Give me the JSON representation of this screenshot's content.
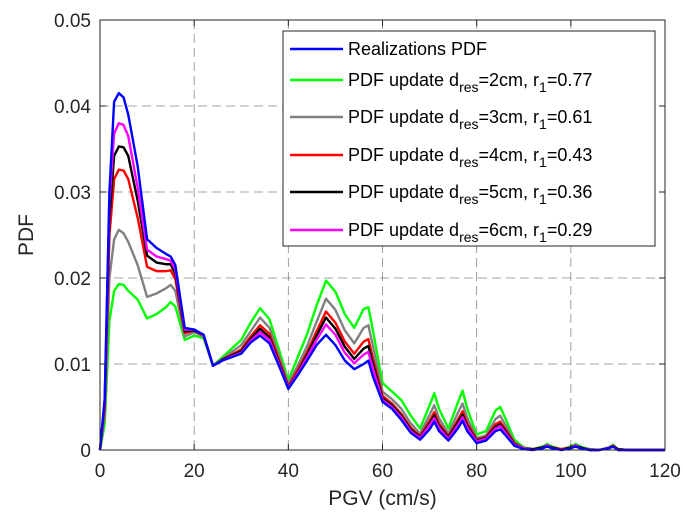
{
  "chart_data": {
    "type": "line",
    "xlabel": "PGV (cm/s)",
    "ylabel": "PDF",
    "xlim": [
      0,
      120
    ],
    "ylim": [
      0,
      0.05
    ],
    "xticks": [
      0,
      20,
      40,
      60,
      80,
      100,
      120
    ],
    "yticks": [
      0,
      0.01,
      0.02,
      0.03,
      0.04,
      0.05
    ],
    "xtick_labels": [
      "0",
      "20",
      "40",
      "60",
      "80",
      "100",
      "120"
    ],
    "ytick_labels": [
      "0",
      "0.01",
      "0.02",
      "0.03",
      "0.04",
      "0.05"
    ],
    "grid": true,
    "legend_position": "top-right",
    "x": [
      0,
      1,
      2,
      3,
      4,
      5,
      6,
      8,
      10,
      12,
      14,
      15,
      16,
      18,
      20,
      22,
      24,
      26,
      28,
      30,
      32,
      34,
      36,
      38,
      40,
      42,
      44,
      46,
      48,
      50,
      52,
      54,
      56,
      57,
      58,
      60,
      62,
      64,
      66,
      68,
      70,
      71,
      72,
      74,
      76,
      77,
      78,
      80,
      82,
      84,
      85,
      86,
      88,
      90,
      92,
      94,
      95,
      96,
      98,
      100,
      101,
      102,
      104,
      106,
      108,
      109,
      110,
      112,
      116,
      120
    ],
    "series": [
      {
        "name": "Realizations PDF",
        "legend_main": "Realizations PDF",
        "legend_sub": "",
        "legend_tail": "",
        "legend_tail_sub": "",
        "legend_value": "",
        "color": "#0000FF",
        "values": [
          0,
          0.006,
          0.03,
          0.0405,
          0.0415,
          0.041,
          0.039,
          0.033,
          0.0245,
          0.0235,
          0.0228,
          0.0225,
          0.0215,
          0.0142,
          0.014,
          0.0134,
          0.0098,
          0.0104,
          0.0108,
          0.0112,
          0.0125,
          0.0133,
          0.0124,
          0.0098,
          0.0071,
          0.0087,
          0.0104,
          0.0122,
          0.0134,
          0.0122,
          0.0104,
          0.0094,
          0.01,
          0.0104,
          0.0085,
          0.0056,
          0.0048,
          0.0035,
          0.002,
          0.0012,
          0.0024,
          0.0033,
          0.0022,
          0.0011,
          0.0025,
          0.0034,
          0.0022,
          0.0008,
          0.0011,
          0.0022,
          0.0024,
          0.0018,
          0.0005,
          0.0001,
          0.0,
          0.0002,
          0.0004,
          0.0002,
          0.0,
          0.0002,
          0.0004,
          0.0002,
          0.0,
          0.0,
          0.0002,
          0.0004,
          0.0,
          0.0,
          0.0,
          0.0
        ]
      },
      {
        "name": "PDF update dres=2cm, r1=0.77",
        "legend_main": "PDF update d",
        "legend_sub": "res",
        "legend_tail": "=2cm, r",
        "legend_tail_sub": "1",
        "legend_value": "=0.77",
        "color": "#00FF00",
        "values": [
          0,
          0.003,
          0.015,
          0.0185,
          0.0193,
          0.0192,
          0.0185,
          0.0175,
          0.0153,
          0.0158,
          0.0166,
          0.0172,
          0.0167,
          0.0128,
          0.0133,
          0.013,
          0.0098,
          0.0108,
          0.0118,
          0.0128,
          0.0148,
          0.0165,
          0.0152,
          0.0117,
          0.0081,
          0.0108,
          0.0135,
          0.0168,
          0.0197,
          0.0184,
          0.0158,
          0.0142,
          0.0164,
          0.0166,
          0.0138,
          0.0078,
          0.0068,
          0.0058,
          0.004,
          0.0025,
          0.0052,
          0.0066,
          0.0048,
          0.0025,
          0.0055,
          0.0069,
          0.0048,
          0.0018,
          0.0022,
          0.0046,
          0.005,
          0.0038,
          0.0012,
          0.0003,
          0.0001,
          0.0004,
          0.0007,
          0.0004,
          0.0001,
          0.0004,
          0.0007,
          0.0004,
          0.0001,
          0.0,
          0.0003,
          0.0006,
          0.0001,
          0.0,
          0.0,
          0.0
        ]
      },
      {
        "name": "PDF update dres=3cm, r1=0.61",
        "legend_main": "PDF update d",
        "legend_sub": "res",
        "legend_tail": "=3cm, r",
        "legend_tail_sub": "1",
        "legend_value": "=0.61",
        "color": "#808080",
        "values": [
          0,
          0.004,
          0.02,
          0.0245,
          0.0256,
          0.0252,
          0.0242,
          0.0215,
          0.0178,
          0.0182,
          0.0188,
          0.0192,
          0.0185,
          0.0132,
          0.0137,
          0.0132,
          0.0098,
          0.0106,
          0.0114,
          0.0122,
          0.0138,
          0.0154,
          0.0142,
          0.011,
          0.0077,
          0.0098,
          0.0121,
          0.0149,
          0.0176,
          0.0163,
          0.0139,
          0.0124,
          0.0142,
          0.0145,
          0.012,
          0.0068,
          0.0059,
          0.0048,
          0.0031,
          0.0019,
          0.0041,
          0.0052,
          0.0037,
          0.0019,
          0.0043,
          0.0054,
          0.0037,
          0.0014,
          0.0017,
          0.0036,
          0.004,
          0.003,
          0.0009,
          0.0002,
          0.0001,
          0.0003,
          0.0006,
          0.0003,
          0.0001,
          0.0003,
          0.0006,
          0.0003,
          0.0001,
          0.0,
          0.0003,
          0.0005,
          0.0001,
          0.0,
          0.0,
          0.0
        ]
      },
      {
        "name": "PDF update dres=4cm, r1=0.43",
        "legend_main": "PDF update d",
        "legend_sub": "res",
        "legend_tail": "=4cm, r",
        "legend_tail_sub": "1",
        "legend_value": "=0.43",
        "color": "#FF0000",
        "values": [
          0,
          0.005,
          0.025,
          0.0315,
          0.0326,
          0.0325,
          0.0315,
          0.027,
          0.0213,
          0.0208,
          0.0208,
          0.0209,
          0.0199,
          0.0136,
          0.0139,
          0.0133,
          0.0098,
          0.0105,
          0.0111,
          0.0117,
          0.0132,
          0.0145,
          0.0135,
          0.0105,
          0.0074,
          0.0093,
          0.0114,
          0.0138,
          0.0161,
          0.0148,
          0.0126,
          0.0112,
          0.0126,
          0.0129,
          0.0106,
          0.0063,
          0.0054,
          0.0042,
          0.0026,
          0.0016,
          0.0034,
          0.0044,
          0.0031,
          0.0016,
          0.0035,
          0.0045,
          0.0031,
          0.0012,
          0.0015,
          0.003,
          0.0033,
          0.0025,
          0.0008,
          0.0002,
          0.0001,
          0.0003,
          0.0005,
          0.0003,
          0.0001,
          0.0003,
          0.0005,
          0.0003,
          0.0,
          0.0,
          0.0002,
          0.0005,
          0.0001,
          0.0,
          0.0,
          0.0
        ]
      },
      {
        "name": "PDF update dres=5cm, r1=0.36",
        "legend_main": "PDF update d",
        "legend_sub": "res",
        "legend_tail": "=5cm, r",
        "legend_tail_sub": "1",
        "legend_value": "=0.36",
        "color": "#000000",
        "values": [
          0,
          0.0055,
          0.027,
          0.0342,
          0.0353,
          0.0352,
          0.0342,
          0.029,
          0.0226,
          0.0218,
          0.0216,
          0.0216,
          0.0205,
          0.0138,
          0.0139,
          0.0134,
          0.0098,
          0.0105,
          0.011,
          0.0115,
          0.0129,
          0.0141,
          0.0131,
          0.0102,
          0.0073,
          0.009,
          0.0111,
          0.0133,
          0.0154,
          0.0141,
          0.012,
          0.0106,
          0.0118,
          0.0121,
          0.01,
          0.006,
          0.0052,
          0.004,
          0.0024,
          0.0015,
          0.0031,
          0.004,
          0.0028,
          0.0015,
          0.0032,
          0.0041,
          0.0028,
          0.0011,
          0.0014,
          0.0027,
          0.003,
          0.0023,
          0.0007,
          0.0002,
          0.0001,
          0.0003,
          0.0005,
          0.0003,
          0.0,
          0.0003,
          0.0005,
          0.0003,
          0.0,
          0.0,
          0.0002,
          0.0004,
          0.0001,
          0.0,
          0.0,
          0.0
        ]
      },
      {
        "name": "PDF update dres=6cm, r1=0.29",
        "legend_main": "PDF update d",
        "legend_sub": "res",
        "legend_tail": "=6cm, r",
        "legend_tail_sub": "1",
        "legend_value": "=0.29",
        "color": "#FF00FF",
        "values": [
          0,
          0.0058,
          0.029,
          0.0368,
          0.038,
          0.0378,
          0.0365,
          0.0305,
          0.0233,
          0.0225,
          0.0222,
          0.022,
          0.021,
          0.014,
          0.014,
          0.0134,
          0.0098,
          0.0104,
          0.0109,
          0.0113,
          0.0127,
          0.0137,
          0.0128,
          0.01,
          0.0072,
          0.0089,
          0.0108,
          0.0128,
          0.0146,
          0.0134,
          0.0113,
          0.0101,
          0.0111,
          0.0114,
          0.0094,
          0.0058,
          0.005,
          0.0038,
          0.0022,
          0.0014,
          0.0029,
          0.0037,
          0.0026,
          0.0013,
          0.0029,
          0.0038,
          0.0026,
          0.001,
          0.0013,
          0.0025,
          0.0028,
          0.0021,
          0.0006,
          0.0002,
          0.0,
          0.0002,
          0.0005,
          0.0002,
          0.0,
          0.0002,
          0.0005,
          0.0002,
          0.0,
          0.0,
          0.0002,
          0.0004,
          0.0,
          0.0,
          0.0,
          0.0
        ]
      }
    ]
  }
}
